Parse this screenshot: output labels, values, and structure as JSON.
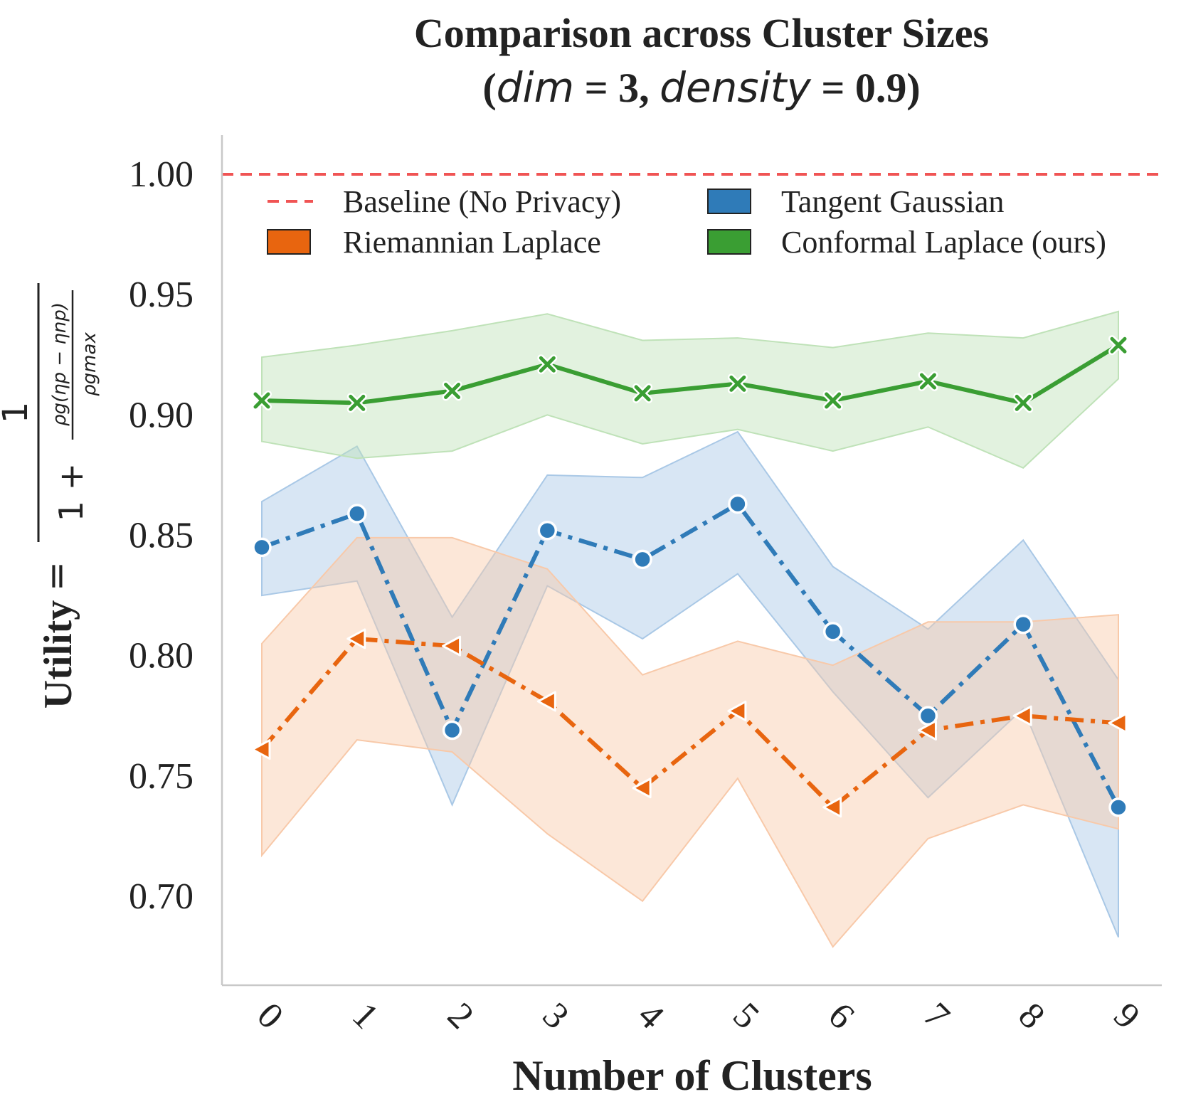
{
  "chart_data": {
    "type": "line",
    "title_line1": "Comparison across Cluster Sizes",
    "title_line2": {
      "open": "(",
      "dim_var": "dim",
      "dim_eq": " = 3, ",
      "density_var": "density",
      "density_eq": " = 0.9)"
    },
    "xlabel": "Number of Clusters",
    "ylabel": {
      "word": "Utility",
      "eq": "=",
      "numerator": "1",
      "denom_prefix": "1 +",
      "inner_numerator": "ρg(ηp − ηnp)",
      "inner_denominator": "ρgmax"
    },
    "x": [
      0,
      1,
      2,
      3,
      4,
      5,
      6,
      7,
      8,
      9
    ],
    "xtick_labels": [
      "0",
      "1",
      "2",
      "3",
      "4",
      "5",
      "6",
      "7",
      "8",
      "9"
    ],
    "ylim": [
      0.675,
      1.016
    ],
    "yticks": [
      0.7,
      0.75,
      0.8,
      0.85,
      0.9,
      0.95,
      1.0
    ],
    "ytick_labels": [
      "0.70",
      "0.75",
      "0.80",
      "0.85",
      "0.90",
      "0.95",
      "1.00"
    ],
    "grid": false,
    "legend_position": "top",
    "baseline": {
      "name": "Baseline (No Privacy)",
      "value": 1.0,
      "color": "#f05454"
    },
    "series": [
      {
        "name": "Tangent Gaussian",
        "color": "#2f7bb8",
        "band_color": "#a9c8e6",
        "marker": "circle",
        "dash": "dashdot",
        "values": [
          0.845,
          0.859,
          0.769,
          0.852,
          0.84,
          0.863,
          0.81,
          0.775,
          0.813,
          0.737
        ],
        "upper": [
          0.864,
          0.887,
          0.816,
          0.875,
          0.874,
          0.893,
          0.837,
          0.811,
          0.848,
          0.79
        ],
        "lower": [
          0.825,
          0.831,
          0.738,
          0.829,
          0.807,
          0.834,
          0.785,
          0.741,
          0.778,
          0.683
        ]
      },
      {
        "name": "Riemannian Laplace",
        "color": "#e8650f",
        "band_color": "#f8c9a9",
        "marker": "triangle-left",
        "dash": "dashdot",
        "values": [
          0.761,
          0.807,
          0.804,
          0.781,
          0.745,
          0.777,
          0.737,
          0.769,
          0.775,
          0.772
        ],
        "upper": [
          0.805,
          0.849,
          0.849,
          0.836,
          0.792,
          0.806,
          0.796,
          0.814,
          0.814,
          0.817
        ],
        "lower": [
          0.717,
          0.765,
          0.76,
          0.726,
          0.698,
          0.749,
          0.679,
          0.724,
          0.738,
          0.728
        ]
      },
      {
        "name": "Conformal Laplace (ours)",
        "color": "#3a9e33",
        "band_color": "#bfe2b8",
        "marker": "x",
        "dash": "solid",
        "values": [
          0.906,
          0.905,
          0.91,
          0.921,
          0.909,
          0.913,
          0.906,
          0.914,
          0.905,
          0.929
        ],
        "upper": [
          0.924,
          0.929,
          0.935,
          0.942,
          0.931,
          0.932,
          0.928,
          0.934,
          0.932,
          0.943
        ],
        "lower": [
          0.889,
          0.882,
          0.885,
          0.9,
          0.888,
          0.894,
          0.885,
          0.895,
          0.878,
          0.915
        ]
      }
    ]
  }
}
